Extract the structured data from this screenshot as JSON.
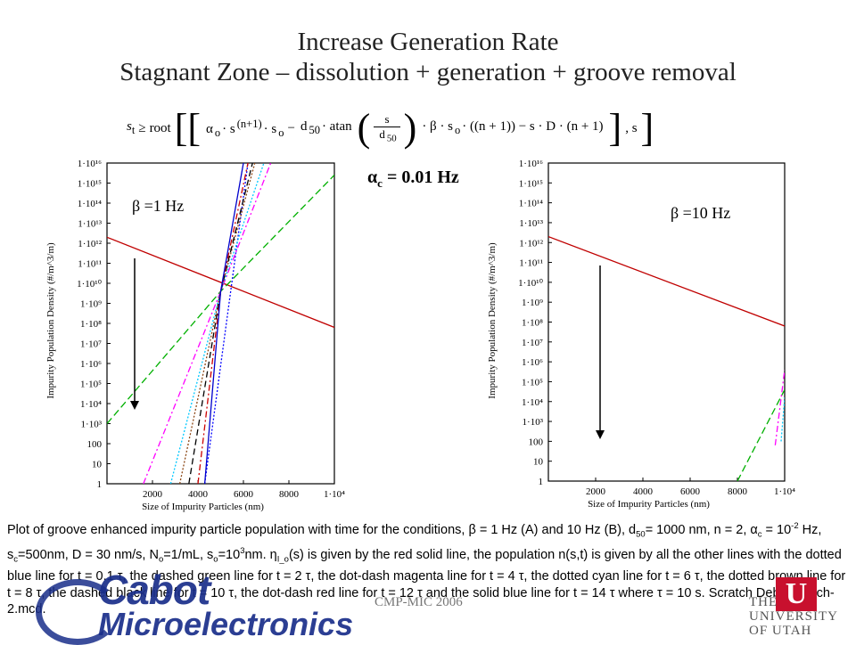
{
  "title_line1": "Increase Generation Rate",
  "title_line2": "Stagnant Zone – dissolution + generation + groove removal",
  "formula": {
    "lhs": "s",
    "lhs_sub": "t",
    "geq": "≥",
    "root": "root",
    "term1": "α",
    "term1_sub": "o",
    "term1_mid": "· s",
    "term1_exp": "(n+1)",
    "term1_end": "· s",
    "term1_end_sub": "o",
    "minus": "−",
    "d": "d",
    "d_sub": "50",
    "atan": "· atan",
    "frac_num": "s",
    "frac_den": "d",
    "frac_den_sub": "50",
    "tail": "· β · s",
    "tail_sub": "o",
    "tail2": "· ((n + 1)) − s · D · (n + 1)",
    "end": ", s"
  },
  "alpha_label": "α",
  "alpha_sub": "c",
  "alpha_value": " = 0.01 Hz",
  "chart_data": [
    {
      "type": "line",
      "panel": "A",
      "annotation": "β =1 Hz",
      "xlabel": "Size of Impurity Particles (nm)",
      "ylabel": "Impurity Population Density (#/m^3/m)",
      "xlim": [
        0,
        10000
      ],
      "ylim": [
        1,
        1e+16
      ],
      "yscale": "log",
      "x_ticks": [
        "2000",
        "4000",
        "6000",
        "8000",
        "1·10⁴"
      ],
      "y_ticks": [
        "1",
        "10",
        "100",
        "1·10³",
        "1·10⁴",
        "1·10⁵",
        "1·10⁶",
        "1·10⁷",
        "1·10⁸",
        "1·10⁹",
        "1·10¹⁰",
        "1·10¹¹",
        "1·10¹²",
        "1·10¹³",
        "1·10¹⁴",
        "1·10¹⁵",
        "1·10¹⁶"
      ],
      "arrow": "time increasing",
      "series": [
        {
          "style": "red solid",
          "color": "#c00000",
          "dash": "",
          "x": [
            0,
            10000
          ],
          "y_log10": [
            12.3,
            7.8
          ]
        },
        {
          "style": "dotted blue",
          "color": "#0000ff",
          "dash": "2,2",
          "x": [
            4300,
            6200
          ],
          "y_log10": [
            0,
            16
          ]
        },
        {
          "style": "dashed green",
          "color": "#00b000",
          "dash": "8,4",
          "x": [
            0,
            5000,
            10000
          ],
          "y_log10": [
            3.0,
            9.6,
            15.4
          ]
        },
        {
          "style": "dot-dash magenta",
          "color": "#ff00ff",
          "dash": "7,3,2,3",
          "x": [
            1600,
            5000,
            7200
          ],
          "y_log10": [
            0,
            9.6,
            16
          ]
        },
        {
          "style": "dotted cyan",
          "color": "#00c8ff",
          "dash": "2,2",
          "x": [
            2800,
            5000,
            6900
          ],
          "y_log10": [
            0,
            9.6,
            16
          ]
        },
        {
          "style": "dotted brown",
          "color": "#8b4513",
          "dash": "2,2",
          "x": [
            3200,
            5000,
            6500
          ],
          "y_log10": [
            0,
            9.6,
            16
          ]
        },
        {
          "style": "dashed black",
          "color": "#000000",
          "dash": "7,4",
          "x": [
            3600,
            5000,
            6400
          ],
          "y_log10": [
            0,
            9.6,
            16
          ]
        },
        {
          "style": "dot-dash red",
          "color": "#cc0000",
          "dash": "7,3,2,3",
          "x": [
            4000,
            5000,
            6200
          ],
          "y_log10": [
            0,
            9.6,
            16
          ]
        },
        {
          "style": "solid blue",
          "color": "#0000cc",
          "dash": "",
          "x": [
            4300,
            5000,
            6000
          ],
          "y_log10": [
            0,
            9.6,
            16
          ]
        }
      ]
    },
    {
      "type": "line",
      "panel": "B",
      "annotation": "β =10 Hz",
      "xlabel": "Size of Impurity Particles (nm)",
      "ylabel": "Impurity Population Density (#/m^3/m)",
      "xlim": [
        0,
        10000
      ],
      "ylim": [
        1,
        1e+16
      ],
      "yscale": "log",
      "x_ticks": [
        "2000",
        "4000",
        "6000",
        "8000",
        "1·10⁴"
      ],
      "y_ticks": [
        "1",
        "10",
        "100",
        "1·10³",
        "1·10⁴",
        "1·10⁵",
        "1·10⁶",
        "1·10⁷",
        "1·10⁸",
        "1·10⁹",
        "1·10¹⁰",
        "1·10¹¹",
        "1·10¹²",
        "1·10¹³",
        "1·10¹⁴",
        "1·10¹⁵",
        "1·10¹⁶"
      ],
      "arrow": "time increasing",
      "series": [
        {
          "style": "red solid",
          "color": "#c00000",
          "dash": "",
          "x": [
            0,
            10000
          ],
          "y_log10": [
            12.3,
            7.8
          ]
        },
        {
          "style": "dashed green",
          "color": "#00b000",
          "dash": "8,4",
          "x": [
            8000,
            10000
          ],
          "y_log10": [
            0,
            4.6
          ]
        },
        {
          "style": "dot-dash magenta",
          "color": "#ff00ff",
          "dash": "7,3,2,3",
          "x": [
            9600,
            10000
          ],
          "y_log10": [
            1.8,
            5.6
          ]
        },
        {
          "style": "dotted cyan",
          "color": "#00c8ff",
          "dash": "2,2",
          "x": [
            9850,
            10000
          ],
          "y_log10": [
            2.0,
            4.2
          ]
        }
      ]
    }
  ],
  "caption": {
    "p1": "Plot of groove enhanced impurity particle population with time for the conditions, β = 1 Hz (A) and 10 Hz (B), d",
    "p1_sub": "50",
    "p2": "= 1000 nm, n = 2, α",
    "p2_sub": "c",
    "p3": " = 10",
    "p3_sup": "-2",
    "p4": " Hz, s",
    "p4_sub": "c",
    "p5": "=500nm, D = 30 nm/s, N",
    "p5_sub": "o",
    "p6": "=1/mL, s",
    "p6_sub": "o",
    "p7": "=10",
    "p7_sup": "3",
    "p8": "nm.  η",
    "p8_sub": "I_o",
    "p9": "(s) is given by the red solid line, the population n(s,t) is given by all the other lines with the dotted blue line for t = 0.1 τ, the dashed green line for t = 2 τ, the dot-dash magenta line for t = 4 τ, the dotted cyan line for t = 6 τ, the dotted brown line for t = 8 τ, the dashed black line for t = 10 τ, the dot-dash red line for t = 12 τ and the solid blue line for t = 14 τ where τ = 10 s. Scratch Debris Batch-2.mcd."
  },
  "footer": {
    "cabot_line1": "Cabot",
    "cabot_line2": "Microelectronics",
    "center": "CMP-MIC 2006",
    "utah_u": "U",
    "utah_line1": "THE",
    "utah_line2": "UNIVERSITY",
    "utah_line3": "OF UTAH"
  }
}
